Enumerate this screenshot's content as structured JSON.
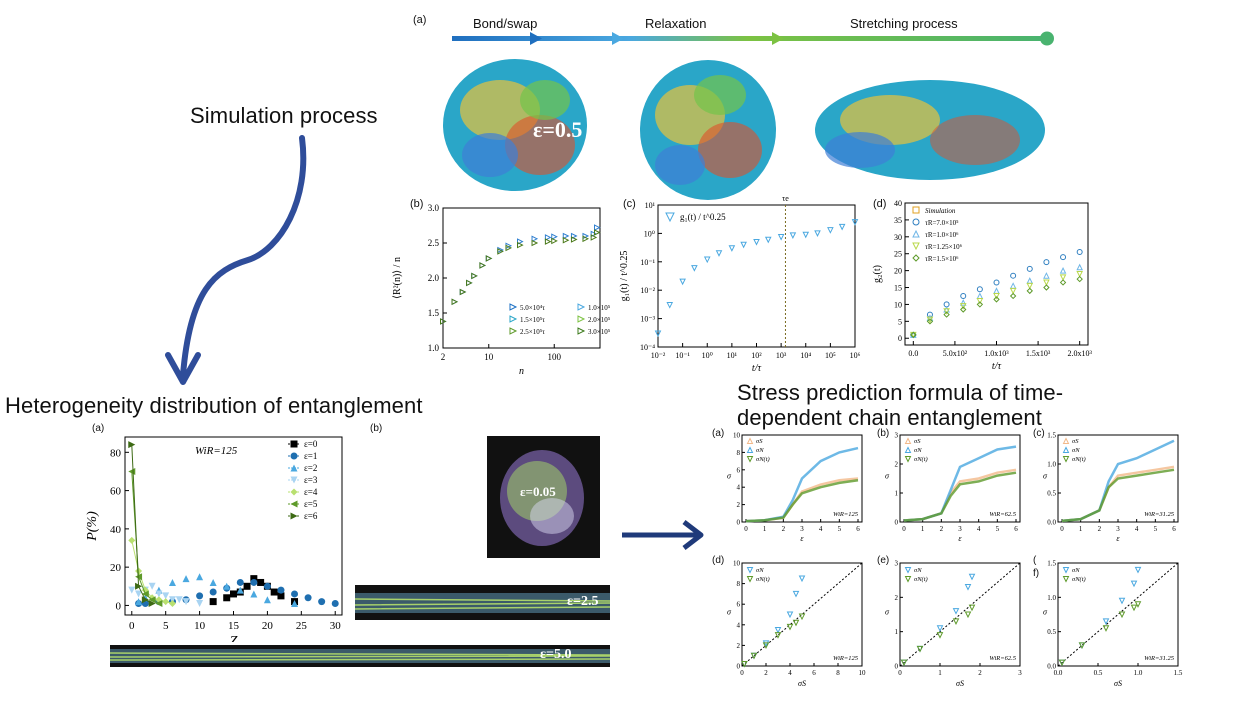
{
  "sections": {
    "simulation": "Simulation process",
    "heterogeneity": "Heterogeneity distribution of entanglement",
    "stress": "Stress prediction formula of time-dependent chain entanglement"
  },
  "process": {
    "panel": "(a)",
    "steps": [
      "Bond/swap",
      "Relaxation",
      "Stretching process"
    ],
    "strain_label": "ε=0.5",
    "arrow_colors": [
      "#1f6fbf",
      "#4aa8e0",
      "#7cc242",
      "#55b87a"
    ]
  },
  "panel_labels": {
    "b": "(b)",
    "c": "(c)",
    "d": "(d)",
    "ha": "(a)",
    "hb": "(b)",
    "sa": "(a)",
    "sb": "(b)",
    "sc": "(c)",
    "sd": "(d)",
    "se": "(e)",
    "sf": "f)",
    "sf_paren": "("
  },
  "snapshots": {
    "e005": "ε=0.05",
    "e25": "ε=2.5",
    "e50": "ε=5.0"
  },
  "chart_b": {
    "ylabel": "⟨R²(n)⟩ / n",
    "xlabel": "n",
    "yticks": [
      "1.0",
      "1.5",
      "2.0",
      "2.5",
      "3.0"
    ],
    "xticks": [
      "2",
      "10",
      "100"
    ],
    "legend": [
      "5.0×10⁴τ",
      "1.0×10⁵τ",
      "1.5×10⁵τ",
      "2.0×10⁵τ",
      "2.5×10⁵τ",
      "3.0×10⁵τ"
    ]
  },
  "chart_c": {
    "ylabel": "g₁(t) / t^0.25",
    "xlabel": "t/τ",
    "legend": "g₁(t) / t^0.25",
    "tau_e": "τe",
    "yticks": [
      "10⁻⁴",
      "10⁻³",
      "10⁻²",
      "10⁻¹",
      "10⁰",
      "10¹"
    ],
    "xticks": [
      "10⁻²",
      "10⁻¹",
      "10⁰",
      "10¹",
      "10²",
      "10³",
      "10⁴",
      "10⁵",
      "10⁶"
    ]
  },
  "chart_d": {
    "ylabel": "g₂(t)",
    "xlabel": "t/τ",
    "yticks": [
      "0",
      "5",
      "10",
      "15",
      "20",
      "25",
      "30",
      "35",
      "40"
    ],
    "xticks": [
      "0.0",
      "5.0x10²",
      "1.0x10³",
      "1.5x10³",
      "2.0x10³"
    ],
    "legend": [
      "Simulation",
      "τR=7.0×10⁵",
      "τR=1.0×10⁶",
      "τR=1.25×10⁶",
      "τR=1.5×10⁶"
    ]
  },
  "chart_h": {
    "ylabel": "P(%)",
    "xlabel": "Z",
    "note": "WiR=125",
    "yticks": [
      "0",
      "20",
      "40",
      "60",
      "80"
    ],
    "xticks": [
      "0",
      "5",
      "10",
      "15",
      "20",
      "25",
      "30"
    ],
    "legend": [
      "ε=0",
      "ε=1",
      "ε=2",
      "ε=3",
      "ε=4",
      "ε=5",
      "ε=6"
    ]
  },
  "stress_top": {
    "legend": [
      "σS",
      "σN",
      "σN(t)"
    ],
    "xlabel": "ε",
    "ylabel": "σ",
    "notes": [
      "WiR=125",
      "WiR=62.5",
      "WiR=31.25"
    ],
    "yticks_a": [
      "0",
      "2",
      "4",
      "6",
      "8",
      "10"
    ],
    "yticks_b": [
      "0",
      "1",
      "2",
      "3"
    ],
    "yticks_c": [
      "0.0",
      "0.5",
      "1.0",
      "1.5"
    ],
    "xticks": [
      "0",
      "1",
      "2",
      "3",
      "4",
      "5",
      "6"
    ]
  },
  "stress_bottom": {
    "legend": [
      "σN",
      "σN(t)"
    ],
    "xlabel": "σS",
    "ylabel": "σ",
    "notes": [
      "WiR=125",
      "WiR=62.5",
      "WiR=31.25"
    ],
    "xticks_d": [
      "0",
      "2",
      "4",
      "6",
      "8",
      "10"
    ],
    "xticks_e": [
      "0",
      "1",
      "2",
      "3"
    ],
    "xticks_f": [
      "0.0",
      "0.5",
      "1.0",
      "1.5"
    ]
  },
  "chart_data": [
    {
      "type": "scatter",
      "title": "",
      "xlabel": "n",
      "ylabel": "⟨R²(n)⟩ / n",
      "xscale": "log",
      "xlim": [
        2,
        500
      ],
      "ylim": [
        1.0,
        3.0
      ],
      "x": [
        2,
        3,
        4,
        5,
        6,
        8,
        10,
        15,
        20,
        30,
        50,
        80,
        100,
        150,
        200,
        300,
        400,
        450
      ],
      "series": [
        {
          "name": "5.0×10⁴τ",
          "values": [
            1.38,
            1.66,
            1.8,
            1.93,
            2.03,
            2.18,
            2.28,
            2.4,
            2.46,
            2.52,
            2.56,
            2.58,
            2.59,
            2.6,
            2.6,
            2.6,
            2.63,
            2.72
          ]
        },
        {
          "name": "3.0×10⁵τ",
          "values": [
            1.38,
            1.66,
            1.8,
            1.93,
            2.03,
            2.18,
            2.28,
            2.38,
            2.43,
            2.47,
            2.5,
            2.52,
            2.53,
            2.54,
            2.55,
            2.56,
            2.58,
            2.65
          ]
        }
      ]
    },
    {
      "type": "scatter",
      "xlabel": "t/τ",
      "ylabel": "g₁(t) / t^0.25",
      "xscale": "log",
      "yscale": "log",
      "xlim": [
        0.01,
        1000000
      ],
      "ylim": [
        0.0001,
        10
      ],
      "x": [
        0.01,
        0.03,
        0.1,
        0.3,
        1,
        3,
        10,
        30,
        100,
        300,
        1000,
        3000,
        10000,
        30000,
        100000,
        300000,
        1000000
      ],
      "series": [
        {
          "name": "g₁(t) / t^0.25",
          "values": [
            0.0003,
            0.003,
            0.02,
            0.06,
            0.12,
            0.2,
            0.3,
            0.4,
            0.5,
            0.6,
            0.75,
            0.85,
            0.9,
            1.0,
            1.3,
            1.7,
            2.5
          ]
        }
      ],
      "annotations": [
        {
          "text": "τe",
          "x": 1500
        }
      ]
    },
    {
      "type": "scatter",
      "xlabel": "t/τ",
      "ylabel": "g₂(t)",
      "xlim": [
        -100,
        2100
      ],
      "ylim": [
        -2,
        40
      ],
      "x": [
        0,
        200,
        400,
        600,
        800,
        1000,
        1200,
        1400,
        1600,
        1800,
        2000
      ],
      "series": [
        {
          "name": "τR=7.0×10⁵",
          "values": [
            1,
            7,
            10,
            12.5,
            14.5,
            16.5,
            18.5,
            20.5,
            22.5,
            24,
            25.5
          ]
        },
        {
          "name": "τR=1.0×10⁶",
          "values": [
            1,
            6,
            8.5,
            10.5,
            12.5,
            14,
            15.5,
            17,
            18.5,
            20,
            21
          ]
        },
        {
          "name": "τR=1.25×10⁶",
          "values": [
            1,
            5.5,
            8,
            9.5,
            11,
            12.5,
            14,
            15.5,
            16.5,
            18,
            19
          ]
        },
        {
          "name": "τR=1.5×10⁶",
          "values": [
            1,
            5,
            7,
            8.5,
            10,
            11.5,
            12.5,
            14,
            15,
            16.5,
            17.5
          ]
        }
      ]
    },
    {
      "type": "scatter",
      "xlabel": "Z",
      "ylabel": "P(%)",
      "xlim": [
        -1,
        31
      ],
      "ylim": [
        -5,
        88
      ],
      "series": [
        {
          "name": "ε=0",
          "x": [
            12,
            14,
            15,
            16,
            17,
            18,
            19,
            20,
            21,
            22,
            24
          ],
          "values": [
            2,
            4,
            6,
            7,
            10,
            14,
            12,
            10,
            7,
            5,
            2
          ]
        },
        {
          "name": "ε=1",
          "x": [
            1,
            2,
            4,
            6,
            8,
            10,
            12,
            14,
            16,
            18,
            20,
            22,
            24,
            26,
            28,
            30
          ],
          "values": [
            1,
            1,
            2,
            2,
            3,
            5,
            7,
            9,
            12,
            12,
            10,
            8,
            6,
            4,
            2,
            1
          ]
        },
        {
          "name": "ε=2",
          "x": [
            1,
            2,
            4,
            6,
            8,
            10,
            12,
            14,
            16,
            18,
            20,
            24
          ],
          "values": [
            2,
            4,
            8,
            12,
            14,
            15,
            12,
            10,
            8,
            6,
            3,
            1
          ]
        },
        {
          "name": "ε=3",
          "x": [
            0,
            1,
            2,
            3,
            4,
            5,
            6,
            7,
            8,
            10
          ],
          "values": [
            8,
            6,
            8,
            10,
            6,
            5,
            3,
            3,
            2,
            1
          ]
        },
        {
          "name": "ε=4",
          "x": [
            0,
            1,
            2,
            3,
            4,
            5,
            6
          ],
          "values": [
            34,
            18,
            8,
            4,
            3,
            2,
            1
          ]
        },
        {
          "name": "ε=5",
          "x": [
            0,
            1,
            2,
            3,
            4
          ],
          "values": [
            70,
            15,
            6,
            3,
            1
          ]
        },
        {
          "name": "ε=6",
          "x": [
            0,
            1,
            2,
            3
          ],
          "values": [
            84,
            10,
            3,
            1
          ]
        }
      ]
    },
    {
      "type": "scatter",
      "xlabel": "ε",
      "ylabel": "σ",
      "xlim": [
        0,
        6
      ],
      "ylim": [
        0,
        10
      ],
      "x": [
        0,
        1,
        2,
        2.5,
        3,
        4,
        5,
        6
      ],
      "series": [
        {
          "name": "σS",
          "values": [
            0.1,
            0.2,
            0.5,
            2,
            3.5,
            4.3,
            4.8,
            5
          ]
        },
        {
          "name": "σN",
          "values": [
            0.1,
            0.2,
            0.6,
            2.5,
            5,
            7,
            8,
            8.5
          ]
        },
        {
          "name": "σN(t)",
          "values": [
            0.1,
            0.2,
            0.5,
            2,
            3.3,
            4,
            4.5,
            4.8
          ]
        }
      ]
    },
    {
      "type": "scatter",
      "xlabel": "ε",
      "ylabel": "σ",
      "xlim": [
        0,
        6
      ],
      "ylim": [
        0,
        3
      ],
      "x": [
        0,
        1,
        2,
        2.5,
        3,
        4,
        5,
        6
      ],
      "series": [
        {
          "name": "σS",
          "values": [
            0.05,
            0.1,
            0.3,
            1,
            1.4,
            1.5,
            1.7,
            1.8
          ]
        },
        {
          "name": "σN",
          "values": [
            0.05,
            0.1,
            0.3,
            1.1,
            1.9,
            2.2,
            2.5,
            2.6
          ]
        },
        {
          "name": "σN(t)",
          "values": [
            0.05,
            0.1,
            0.3,
            0.9,
            1.3,
            1.4,
            1.6,
            1.7
          ]
        }
      ]
    },
    {
      "type": "scatter",
      "xlabel": "ε",
      "ylabel": "σ",
      "xlim": [
        0,
        6
      ],
      "ylim": [
        0,
        1.5
      ],
      "x": [
        0,
        1,
        2,
        2.5,
        3,
        4,
        5,
        6
      ],
      "series": [
        {
          "name": "σS",
          "values": [
            0.02,
            0.05,
            0.2,
            0.6,
            0.8,
            0.85,
            0.9,
            0.95
          ]
        },
        {
          "name": "σN",
          "values": [
            0.02,
            0.05,
            0.2,
            0.7,
            1.0,
            1.1,
            1.25,
            1.4
          ]
        },
        {
          "name": "σN(t)",
          "values": [
            0.02,
            0.05,
            0.2,
            0.6,
            0.75,
            0.8,
            0.85,
            0.9
          ]
        }
      ]
    },
    {
      "type": "scatter",
      "xlabel": "σS",
      "ylabel": "σ",
      "xlim": [
        0,
        10
      ],
      "ylim": [
        0,
        10
      ],
      "series": [
        {
          "name": "σN",
          "x": [
            0.2,
            1,
            2,
            3,
            4,
            4.5,
            5
          ],
          "values": [
            0.2,
            1,
            2.2,
            3.5,
            5,
            7,
            8.5
          ]
        },
        {
          "name": "σN(t)",
          "x": [
            0.2,
            1,
            2,
            3,
            4,
            4.5,
            5
          ],
          "values": [
            0.2,
            1,
            2,
            3,
            3.8,
            4.2,
            4.8
          ]
        }
      ]
    },
    {
      "type": "scatter",
      "xlabel": "σS",
      "ylabel": "σ",
      "xlim": [
        0,
        3
      ],
      "ylim": [
        0,
        3
      ],
      "series": [
        {
          "name": "σN",
          "x": [
            0.1,
            0.5,
            1,
            1.4,
            1.7,
            1.8
          ],
          "values": [
            0.1,
            0.5,
            1.1,
            1.6,
            2.3,
            2.6
          ]
        },
        {
          "name": "σN(t)",
          "x": [
            0.1,
            0.5,
            1,
            1.4,
            1.7,
            1.8
          ],
          "values": [
            0.1,
            0.5,
            0.9,
            1.3,
            1.5,
            1.7
          ]
        }
      ]
    },
    {
      "type": "scatter",
      "xlabel": "σS",
      "ylabel": "σ",
      "xlim": [
        0,
        1.5
      ],
      "ylim": [
        0,
        1.5
      ],
      "series": [
        {
          "name": "σN",
          "x": [
            0.05,
            0.3,
            0.6,
            0.8,
            0.95,
            1.0
          ],
          "values": [
            0.05,
            0.3,
            0.65,
            0.95,
            1.2,
            1.4
          ]
        },
        {
          "name": "σN(t)",
          "x": [
            0.05,
            0.3,
            0.6,
            0.8,
            0.95,
            1.0
          ],
          "values": [
            0.05,
            0.3,
            0.55,
            0.75,
            0.85,
            0.9
          ]
        }
      ]
    }
  ]
}
